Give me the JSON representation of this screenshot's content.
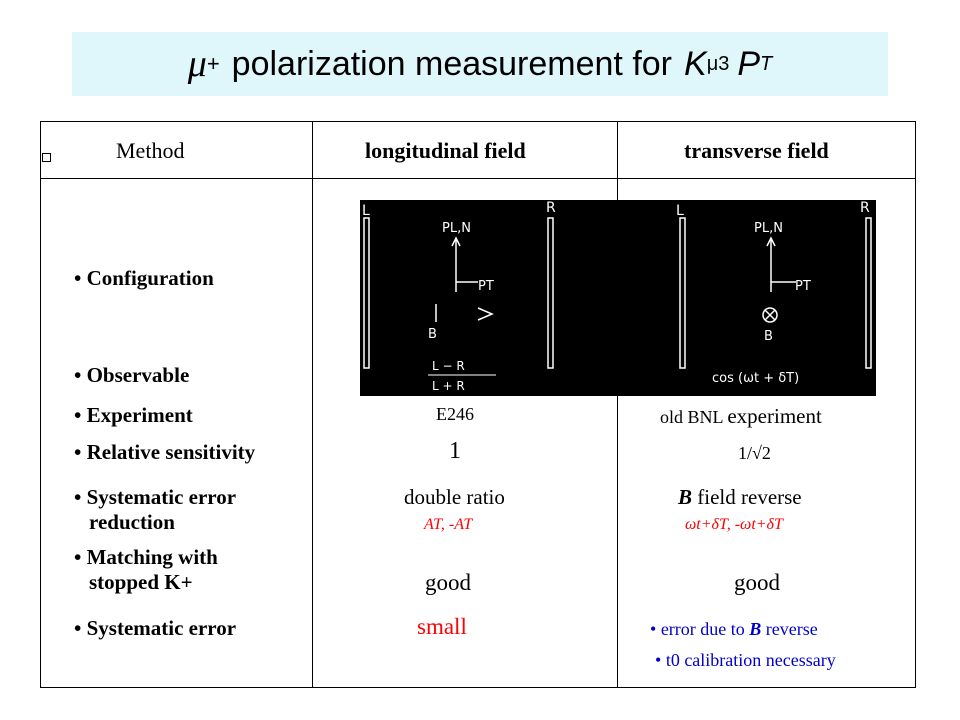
{
  "title": {
    "mu": "μ",
    "plus": "+",
    "text": "polarization  measurement  for",
    "K": "K",
    "K_sub": "μ3",
    "P": "P",
    "P_sub": "T"
  },
  "table": {
    "headers": {
      "method": "Method",
      "longitudinal": "longitudinal field",
      "transverse": "transverse field"
    },
    "rows": {
      "configuration": "• Configuration",
      "observable": "• Observable",
      "experiment": "• Experiment",
      "experiment_long": "E246",
      "experiment_trans_a": "old BNL",
      "experiment_trans_b": "experiment",
      "rel_sensitivity": "• Relative sensitivity",
      "rel_sensitivity_long": "1",
      "rel_sensitivity_trans": "1/√2",
      "syst_reduction_1": "• Systematic error",
      "syst_reduction_2": "reduction",
      "syst_reduction_long": "double ratio",
      "syst_reduction_long_sub": "AT,  -AT",
      "syst_reduction_trans_B": "B",
      "syst_reduction_trans": "field reverse",
      "syst_reduction_trans_sub": "ωt+δT,  -ωt+δT",
      "matching_1": "• Matching with",
      "matching_2": "stopped K+",
      "matching_long": "good",
      "matching_trans": "good",
      "syst_error": "• Systematic error",
      "syst_error_long": "small",
      "syst_error_trans_1": "error due to",
      "syst_error_trans_1_B": "B",
      "syst_error_trans_1_end": "reverse",
      "syst_error_trans_2": "t0 calibration necessary"
    }
  },
  "diagram_left": {
    "L": "L",
    "R": "R",
    "P_LN": "PL,N",
    "P_T": "PT",
    "B": "B",
    "numerator": "L − R",
    "denominator": "L + R"
  },
  "diagram_right": {
    "L": "L",
    "R": "R",
    "P_LN": "PL,N",
    "P_T": "PT",
    "B": "B",
    "observable": "cos (ωt + δT)"
  },
  "colors": {
    "title_band": "#dff7fb",
    "red": "#ff0000",
    "blue": "#0000cc",
    "diagram_bg": "#000000"
  }
}
